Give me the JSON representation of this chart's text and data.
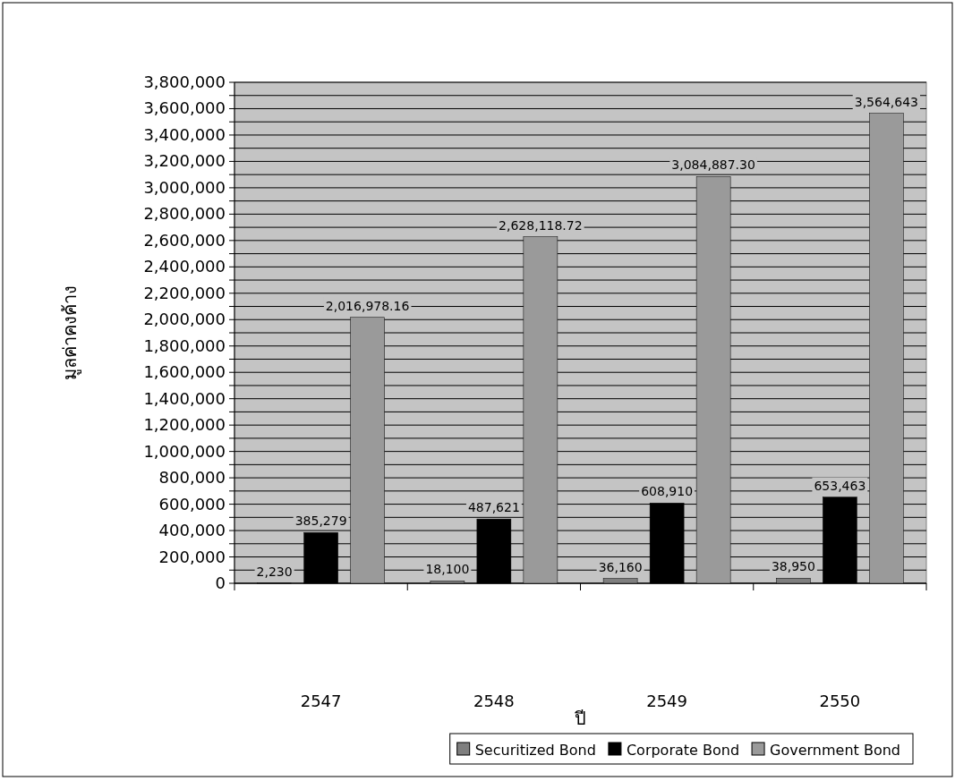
{
  "chart_data": {
    "type": "bar",
    "xlabel": "ปี",
    "ylabel": "มูลค่าคงค้าง",
    "categories": [
      "2547",
      "2548",
      "2549",
      "2550"
    ],
    "series": [
      {
        "name": "Securitized Bond",
        "color": "#7f7f7f",
        "values": [
          2230,
          18100,
          36160,
          38950
        ],
        "value_labels": [
          "2,230",
          "18,100",
          "36,160",
          "38,950"
        ]
      },
      {
        "name": "Corporate Bond",
        "color": "#000000",
        "values": [
          385279,
          487621,
          608910,
          653463
        ],
        "value_labels": [
          "385,279",
          "487,621",
          "608,910",
          "653,463"
        ]
      },
      {
        "name": "Government Bond",
        "color": "#9a9a9a",
        "values": [
          2016978.16,
          2628118.72,
          3084887.3,
          3564643
        ],
        "value_labels": [
          "2,016,978.16",
          "2,628,118.72",
          "3,084,887.30",
          "3,564,643"
        ]
      }
    ],
    "ylim": [
      0,
      3800000
    ],
    "yticks": [
      {
        "value": 0,
        "label": "0"
      },
      {
        "value": 100000,
        "label": null
      },
      {
        "value": 200000,
        "label": "200,000"
      },
      {
        "value": 300000,
        "label": null
      },
      {
        "value": 400000,
        "label": "400,000"
      },
      {
        "value": 500000,
        "label": null
      },
      {
        "value": 600000,
        "label": "600,000"
      },
      {
        "value": 700000,
        "label": null
      },
      {
        "value": 800000,
        "label": "800,000"
      },
      {
        "value": 900000,
        "label": null
      },
      {
        "value": 1000000,
        "label": "1,000,000"
      },
      {
        "value": 1100000,
        "label": null
      },
      {
        "value": 1200000,
        "label": "1,200,000"
      },
      {
        "value": 1300000,
        "label": null
      },
      {
        "value": 1400000,
        "label": "1,400,000"
      },
      {
        "value": 1500000,
        "label": null
      },
      {
        "value": 1600000,
        "label": "1,600,000"
      },
      {
        "value": 1700000,
        "label": null
      },
      {
        "value": 1800000,
        "label": "1,800,000"
      },
      {
        "value": 1900000,
        "label": null
      },
      {
        "value": 2000000,
        "label": "2,000,000"
      },
      {
        "value": 2100000,
        "label": null
      },
      {
        "value": 2200000,
        "label": "2,200,000"
      },
      {
        "value": 2300000,
        "label": null
      },
      {
        "value": 2400000,
        "label": "2,400,000"
      },
      {
        "value": 2500000,
        "label": null
      },
      {
        "value": 2600000,
        "label": "2,600,000"
      },
      {
        "value": 2700000,
        "label": null
      },
      {
        "value": 2800000,
        "label": "2,800,000"
      },
      {
        "value": 2900000,
        "label": null
      },
      {
        "value": 3000000,
        "label": "3,000,000"
      },
      {
        "value": 3100000,
        "label": null
      },
      {
        "value": 3200000,
        "label": "3,200,000"
      },
      {
        "value": 3300000,
        "label": null
      },
      {
        "value": 3400000,
        "label": "3,400,000"
      },
      {
        "value": 3500000,
        "label": null
      },
      {
        "value": 3600000,
        "label": "3,600,000"
      },
      {
        "value": 3700000,
        "label": null
      },
      {
        "value": 3800000,
        "label": "3,800,000"
      }
    ],
    "grid": "y",
    "legend": "bottom"
  }
}
